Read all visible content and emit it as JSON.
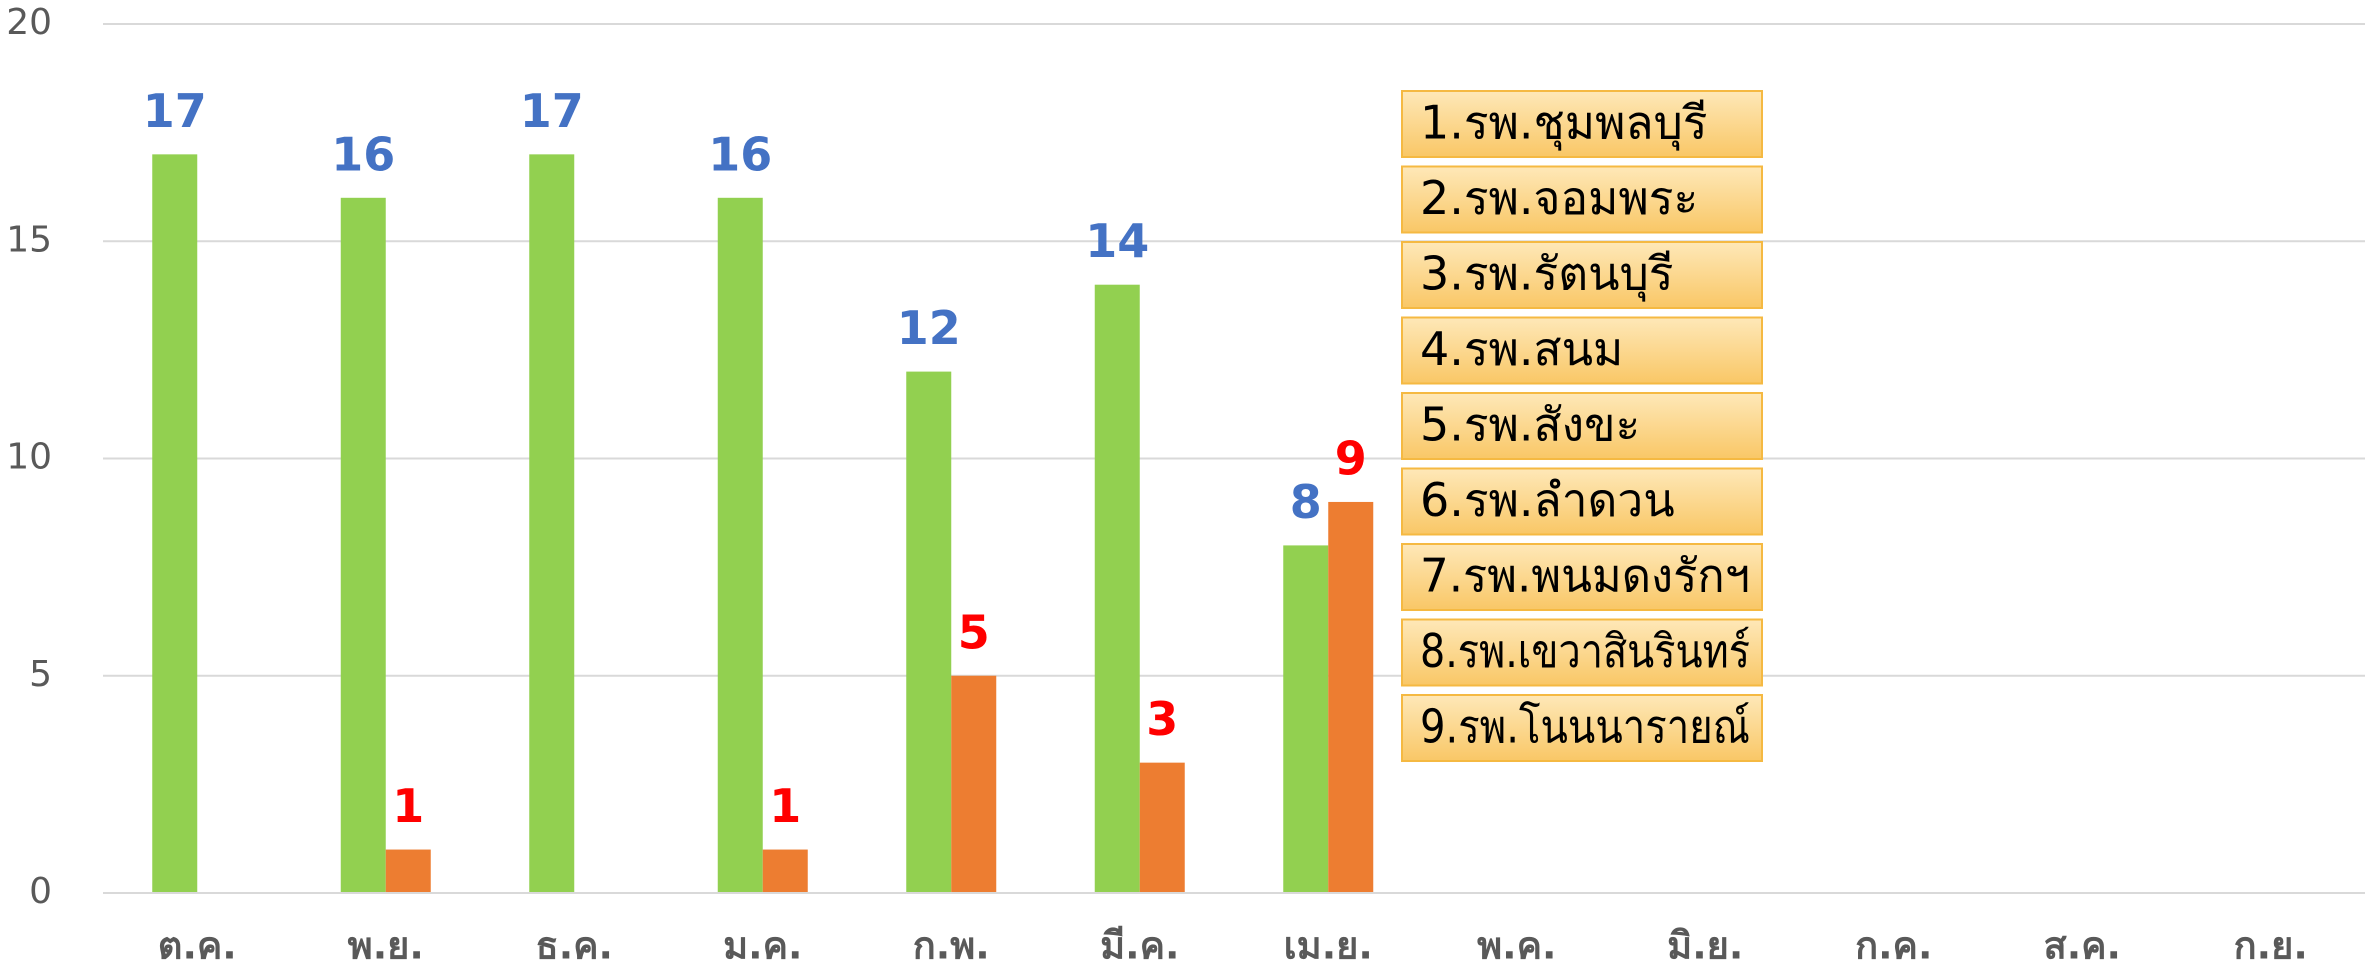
{
  "chart_data": {
    "type": "bar",
    "categories": [
      "ต.ค.",
      "พ.ย.",
      "ธ.ค.",
      "ม.ค.",
      "ก.พ.",
      "มี.ค.",
      "เม.ย.",
      "พ.ค.",
      "มิ.ย.",
      "ก.ค.",
      "ส.ค.",
      "ก.ย."
    ],
    "series": [
      {
        "color": "#92d050",
        "label_color": "#4472c4",
        "values": [
          17,
          16,
          17,
          16,
          12,
          14,
          8,
          null,
          null,
          null,
          null,
          null
        ]
      },
      {
        "color": "#ed7d31",
        "label_color": "#ff0000",
        "values": [
          null,
          1,
          null,
          1,
          5,
          3,
          9,
          null,
          null,
          null,
          null,
          null
        ]
      }
    ],
    "ylim": [
      0,
      20
    ],
    "yticks": [
      0,
      5,
      10,
      15,
      20
    ],
    "grid": true,
    "annotations": [
      "1.รพ.ชุมพลบุรี",
      "2.รพ.จอมพระ",
      "3.รพ.รัตนบุรี",
      "4.รพ.สนม",
      "5.รพ.สังขะ",
      "6.รพ.ลำดวน",
      "7.รพ.พนมดงรักฯ",
      "8.รพ.เขวาสินรินทร์",
      "9.รพ.โนนนารายณ์"
    ]
  }
}
